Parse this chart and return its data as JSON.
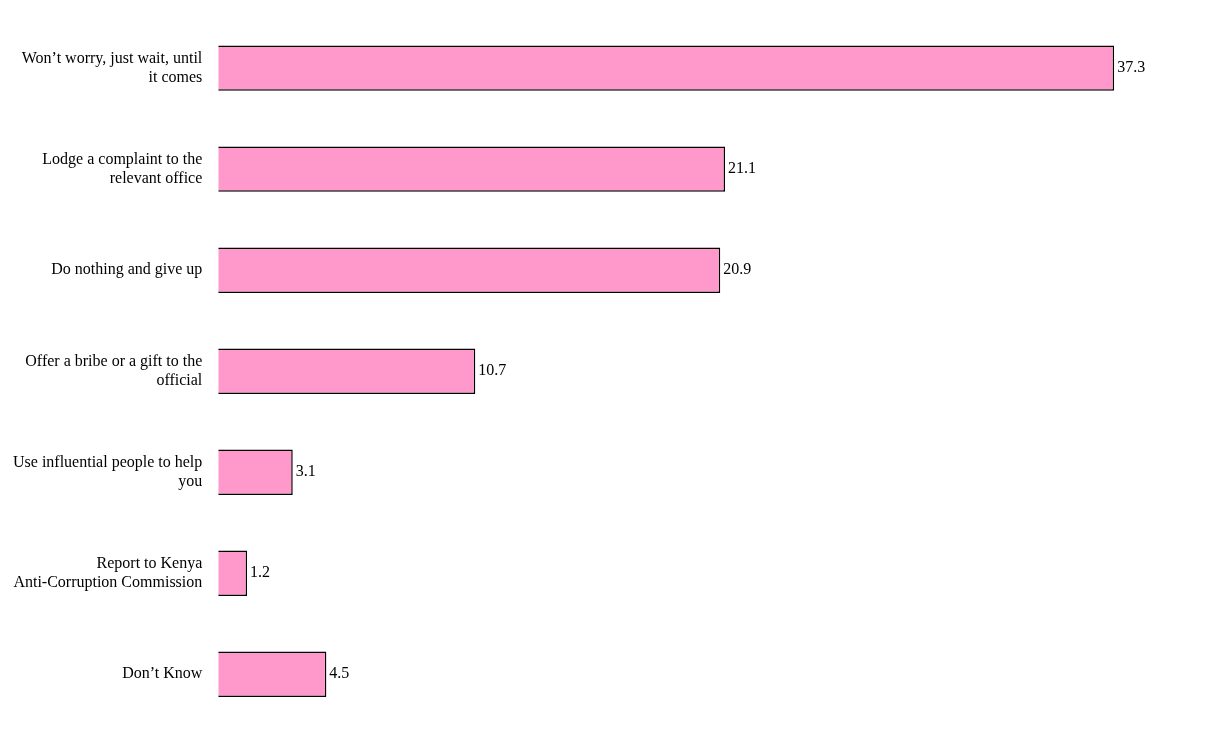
{
  "chart_data": {
    "type": "bar",
    "orientation": "horizontal",
    "categories": [
      "Won’t worry, just wait, until it comes",
      "Lodge a complaint to the relevant office",
      "Do nothing and give up",
      "Offer a bribe or a gift to the official",
      "Use influential people to help you",
      "Report to Kenya Anti-Corruption Commission",
      "Don’t Know"
    ],
    "values": [
      37.3,
      21.1,
      20.9,
      10.7,
      3.1,
      1.2,
      4.5
    ],
    "color": "#ff99cc",
    "data_labels": true,
    "grid": false,
    "legend": false
  }
}
